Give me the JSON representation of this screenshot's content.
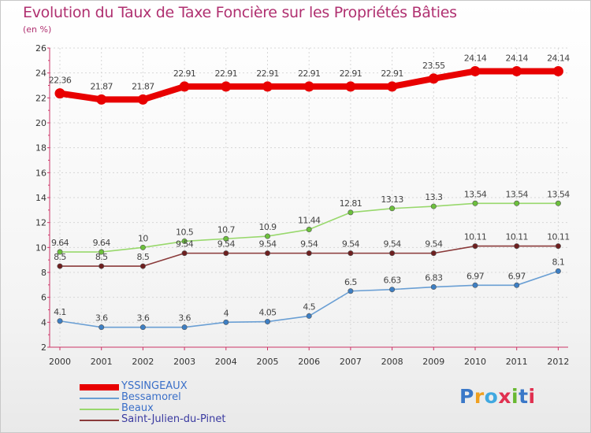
{
  "title": "Evolution du Taux de Taxe Foncière sur les Propriétés Bâties",
  "unit_label": "(en %)",
  "brand": {
    "text": "Proxiti",
    "colors": [
      "#3a78c8",
      "#f0a020",
      "#40a8e0",
      "#e03050",
      "#68b830",
      "#3a78c8",
      "#e03050"
    ]
  },
  "chart_data": {
    "type": "line",
    "x": [
      "2000",
      "2001",
      "2002",
      "2003",
      "2004",
      "2005",
      "2006",
      "2007",
      "2008",
      "2009",
      "2010",
      "2011",
      "2012"
    ],
    "ylim": [
      2,
      26
    ],
    "yticks": [
      2,
      4,
      6,
      8,
      10,
      12,
      14,
      16,
      18,
      20,
      22,
      24,
      26
    ],
    "grid": true,
    "legend_position": "bottom-left",
    "series": [
      {
        "name": "YSSINGEAUX",
        "color": "#e80000",
        "marker_color": "#e80000",
        "values": [
          22.36,
          21.87,
          21.87,
          22.91,
          22.91,
          22.91,
          22.91,
          22.91,
          22.91,
          23.55,
          24.14,
          24.14,
          24.14
        ],
        "labels": [
          "22.36",
          "21.87",
          "21.87",
          "22.91",
          "22.91",
          "22.91",
          "22.91",
          "22.91",
          "22.91",
          "23.55",
          "24.14",
          "24.14",
          "24.14"
        ]
      },
      {
        "name": "Bessamorel",
        "color": "#6a9fd4",
        "marker_color": "#3d7fc4",
        "values": [
          4.1,
          3.6,
          3.6,
          3.6,
          4,
          4.05,
          4.5,
          6.5,
          6.63,
          6.83,
          6.97,
          6.97,
          8.1
        ],
        "labels": [
          "4.1",
          "3.6",
          "3.6",
          "3.6",
          "4",
          "4.05",
          "4.5",
          "6.5",
          "6.63",
          "6.83",
          "6.97",
          "6.97",
          "8.1"
        ]
      },
      {
        "name": "Beaux",
        "color": "#98d86c",
        "marker_color": "#6cc03c",
        "values": [
          9.64,
          9.64,
          10,
          10.5,
          10.7,
          10.9,
          11.44,
          12.81,
          13.13,
          13.3,
          13.54,
          13.54,
          13.54
        ],
        "labels": [
          "9.64",
          "9.64",
          "10",
          "10.5",
          "10.7",
          "10.9",
          "11.44",
          "12.81",
          "13.13",
          "13.3",
          "13.54",
          "13.54",
          "13.54"
        ]
      },
      {
        "name": "Saint-Julien-du-Pinet",
        "color": "#8a3a3a",
        "marker_color": "#6e1f1f",
        "values": [
          8.5,
          8.5,
          8.5,
          9.54,
          9.54,
          9.54,
          9.54,
          9.54,
          9.54,
          9.54,
          10.11,
          10.11,
          10.11
        ],
        "labels": [
          "8.5",
          "8.5",
          "8.5",
          "9.54",
          "9.54",
          "9.54",
          "9.54",
          "9.54",
          "9.54",
          "9.54",
          "10.11",
          "10.11",
          "10.11"
        ]
      }
    ]
  }
}
